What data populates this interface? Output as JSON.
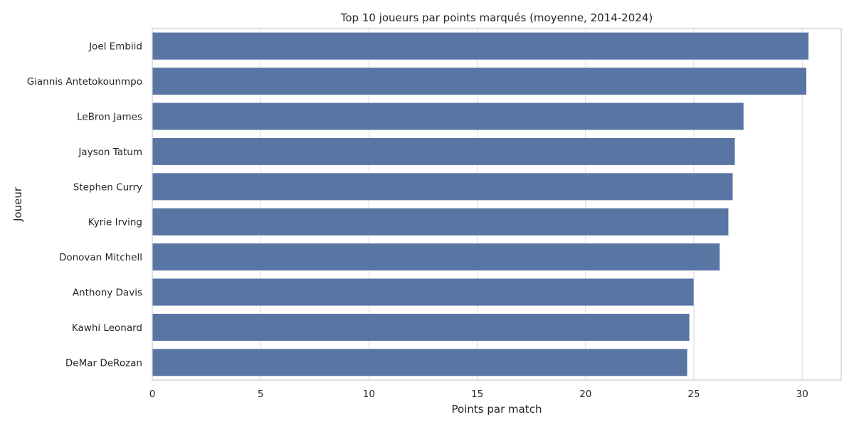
{
  "chart_data": {
    "type": "bar",
    "orientation": "horizontal",
    "title": "Top 10 joueurs par points marqués (moyenne, 2014-2024)",
    "xlabel": "Points par match",
    "ylabel": "Joueur",
    "xlim": [
      0,
      31.8
    ],
    "xticks": [
      0,
      5,
      10,
      15,
      20,
      25,
      30
    ],
    "grid": true,
    "bar_color": "#5975a4",
    "categories": [
      "Joel Embiid",
      "Giannis Antetokounmpo",
      "LeBron James",
      "Jayson Tatum",
      "Stephen Curry",
      "Kyrie Irving",
      "Donovan Mitchell",
      "Anthony Davis",
      "Kawhi Leonard",
      "DeMar DeRozan"
    ],
    "values": [
      30.3,
      30.2,
      27.3,
      26.9,
      26.8,
      26.6,
      26.2,
      25.0,
      24.8,
      24.7
    ]
  }
}
